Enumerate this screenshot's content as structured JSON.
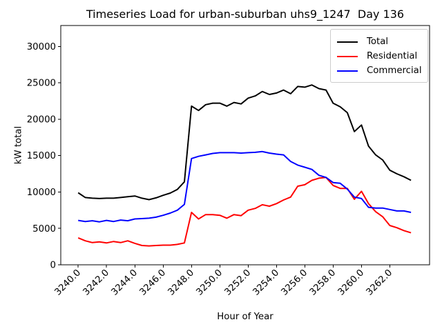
{
  "chart_data": {
    "type": "line",
    "title": "Timeseries Load for urban-suburban uhs9_1247  Day 136",
    "xlabel": "Hour of Year",
    "ylabel": "kW total",
    "xlim": [
      3238.77,
      3264.81
    ],
    "ylim": [
      0,
      32870
    ],
    "grid": false,
    "legend_position": "upper right",
    "x_ticks": {
      "values": [
        3240,
        3242,
        3244,
        3246,
        3248,
        3250,
        3252,
        3254,
        3256,
        3258,
        3260,
        3262
      ],
      "labels": [
        "3240.0",
        "3242.0",
        "3244.0",
        "3246.0",
        "3248.0",
        "3250.0",
        "3252.0",
        "3254.0",
        "3256.0",
        "3258.0",
        "3260.0",
        "3262.0"
      ]
    },
    "y_ticks": {
      "values": [
        0,
        5000,
        10000,
        15000,
        20000,
        25000,
        30000
      ],
      "labels": [
        "0",
        "5000",
        "10000",
        "15000",
        "20000",
        "25000",
        "30000"
      ]
    },
    "x": [
      3240.0,
      3240.5,
      3241.0,
      3241.5,
      3242.0,
      3242.5,
      3243.0,
      3243.5,
      3244.0,
      3244.5,
      3245.0,
      3245.5,
      3246.0,
      3246.5,
      3247.0,
      3247.5,
      3248.0,
      3248.5,
      3249.0,
      3249.5,
      3250.0,
      3250.5,
      3251.0,
      3251.5,
      3252.0,
      3252.5,
      3253.0,
      3253.5,
      3254.0,
      3254.5,
      3255.0,
      3255.5,
      3256.0,
      3256.5,
      3257.0,
      3257.5,
      3258.0,
      3258.5,
      3259.0,
      3259.5,
      3260.0,
      3260.5,
      3261.0,
      3261.5,
      3262.0,
      3262.5,
      3263.0,
      3263.5
    ],
    "series": [
      {
        "name": "Total",
        "color": "#000000",
        "values": [
          9900,
          9250,
          9150,
          9100,
          9150,
          9150,
          9250,
          9350,
          9450,
          9150,
          8950,
          9200,
          9550,
          9850,
          10350,
          11400,
          21800,
          21200,
          22000,
          22200,
          22200,
          21800,
          22300,
          22100,
          22900,
          23200,
          23800,
          23400,
          23600,
          24000,
          23500,
          24500,
          24400,
          24700,
          24200,
          24000,
          22200,
          21700,
          20900,
          18300,
          19200,
          16300,
          15100,
          14400,
          13000,
          12500,
          12100,
          11600
        ]
      },
      {
        "name": "Residential",
        "color": "#ff0000",
        "values": [
          3700,
          3300,
          3050,
          3150,
          3000,
          3200,
          3050,
          3300,
          2950,
          2650,
          2600,
          2650,
          2700,
          2700,
          2800,
          3000,
          7200,
          6300,
          6900,
          6900,
          6800,
          6400,
          6900,
          6750,
          7500,
          7750,
          8250,
          8050,
          8400,
          8900,
          9300,
          10800,
          11000,
          11600,
          11900,
          12000,
          10900,
          10500,
          10500,
          9000,
          10100,
          8400,
          7300,
          6600,
          5400,
          5100,
          4700,
          4400
        ]
      },
      {
        "name": "Commercial",
        "color": "#0000ff",
        "values": [
          6100,
          5950,
          6050,
          5900,
          6100,
          5950,
          6150,
          6050,
          6300,
          6350,
          6400,
          6550,
          6800,
          7100,
          7500,
          8300,
          14600,
          14900,
          15100,
          15300,
          15400,
          15400,
          15400,
          15350,
          15400,
          15450,
          15550,
          15350,
          15200,
          15100,
          14200,
          13700,
          13400,
          13100,
          12300,
          12000,
          11300,
          11200,
          10400,
          9300,
          9100,
          7900,
          7800,
          7800,
          7600,
          7400,
          7400,
          7200
        ]
      }
    ]
  }
}
